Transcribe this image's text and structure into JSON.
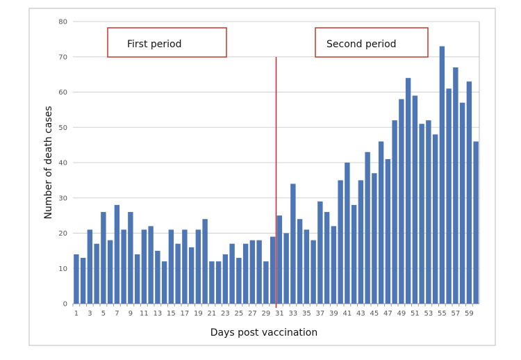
{
  "chart_data": {
    "type": "bar",
    "xlabel": "Days post vaccination",
    "ylabel": "Number of death cases",
    "ylim": [
      0,
      80
    ],
    "yticks": [
      0,
      10,
      20,
      30,
      40,
      50,
      60,
      70,
      80
    ],
    "grid": true,
    "bar_color": "#4F76B4",
    "x": [
      1,
      2,
      3,
      4,
      5,
      6,
      7,
      8,
      9,
      10,
      11,
      12,
      13,
      14,
      15,
      16,
      17,
      18,
      19,
      20,
      21,
      22,
      23,
      24,
      25,
      26,
      27,
      28,
      29,
      30,
      31,
      32,
      33,
      34,
      35,
      36,
      37,
      38,
      39,
      40,
      41,
      42,
      43,
      44,
      45,
      46,
      47,
      48,
      49,
      50,
      51,
      52,
      53,
      54,
      55,
      56,
      57,
      58,
      59,
      60
    ],
    "values": [
      14,
      13,
      21,
      17,
      26,
      18,
      28,
      21,
      26,
      14,
      21,
      22,
      15,
      12,
      21,
      17,
      21,
      16,
      21,
      24,
      12,
      12,
      14,
      17,
      13,
      17,
      18,
      18,
      12,
      19,
      25,
      20,
      34,
      24,
      21,
      18,
      29,
      26,
      22,
      35,
      40,
      28,
      35,
      43,
      37,
      46,
      41,
      52,
      58,
      64,
      59,
      51,
      52,
      48,
      73,
      61,
      67,
      57,
      63,
      46
    ],
    "xtick_labels_shown": "odd days",
    "annotations": [
      {
        "text": "First period",
        "border_color": "#C0392B"
      },
      {
        "text": "Second period",
        "border_color": "#C0392B"
      }
    ],
    "divider": {
      "between_days": [
        30,
        31
      ],
      "color": "#C0262D"
    }
  }
}
